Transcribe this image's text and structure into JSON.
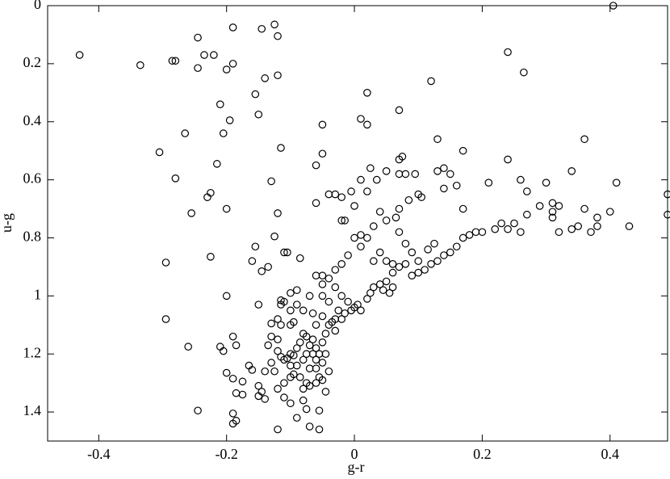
{
  "chart_data": {
    "type": "scatter",
    "xlabel": "g-r",
    "ylabel": "u-g",
    "color": "#000000",
    "xlim": [
      -0.48,
      0.49
    ],
    "ylim": [
      1.5,
      0
    ],
    "xticks": [
      -0.4,
      -0.2,
      0,
      0.2,
      0.4
    ],
    "yticks": [
      0,
      0.2,
      0.4,
      0.6,
      0.8,
      1,
      1.2,
      1.4
    ],
    "x": [
      -0.43,
      -0.335,
      -0.285,
      -0.28,
      -0.245,
      -0.235,
      -0.245,
      -0.22,
      -0.19,
      -0.19,
      -0.2,
      -0.145,
      -0.125,
      -0.12,
      -0.12,
      -0.14,
      -0.155,
      -0.21,
      -0.15,
      -0.195,
      -0.205,
      -0.265,
      -0.305,
      -0.215,
      -0.115,
      -0.28,
      -0.225,
      -0.23,
      -0.13,
      -0.255,
      -0.2,
      -0.12,
      -0.125,
      -0.155,
      -0.16,
      -0.225,
      -0.295,
      -0.145,
      -0.135,
      -0.11,
      -0.105,
      -0.085,
      -0.2,
      -0.15,
      -0.295,
      -0.26,
      -0.21,
      -0.205,
      -0.19,
      -0.185,
      -0.2,
      -0.19,
      -0.175,
      -0.165,
      -0.16,
      -0.15,
      -0.145,
      -0.15,
      -0.14,
      -0.185,
      -0.175,
      -0.245,
      -0.19,
      -0.185,
      -0.19,
      -0.12,
      -0.09,
      -0.07,
      -0.055,
      -0.055,
      -0.075,
      -0.115,
      -0.11,
      -0.115,
      -0.1,
      -0.12,
      -0.115,
      -0.13,
      -0.095,
      -0.1,
      -0.13,
      -0.12,
      -0.135,
      -0.12,
      -0.115,
      -0.13,
      -0.11,
      -0.1,
      -0.09,
      -0.085,
      -0.08,
      -0.075,
      -0.07,
      -0.06,
      -0.055,
      -0.05,
      -0.045,
      -0.04,
      -0.035,
      -0.065,
      -0.075,
      -0.08,
      -0.09,
      -0.095,
      -0.085,
      -0.075,
      -0.08,
      -0.07,
      -0.06,
      -0.055,
      -0.05,
      -0.045,
      -0.1,
      -0.11,
      -0.12,
      -0.11,
      -0.14,
      -0.125,
      -0.1,
      -0.105,
      -0.095,
      -0.065,
      -0.06,
      -0.07,
      -0.06,
      -0.05,
      -0.065,
      -0.08,
      -0.09,
      -0.1,
      -0.09,
      -0.07,
      -0.05,
      -0.06,
      -0.04,
      -0.03,
      -0.02,
      -0.01,
      0,
      -0.005,
      0.01,
      0.005,
      0.02,
      0.025,
      0.03,
      0.04,
      0.05,
      0.06,
      0.055,
      0.045,
      -0.03,
      -0.025,
      -0.04,
      -0.05,
      -0.03,
      -0.02,
      -0.015,
      -0.045,
      -0.05,
      -0.04,
      -0.06,
      -0.08,
      -0.1,
      -0.05,
      -0.03,
      -0.02,
      -0.01,
      0,
      0.01,
      -0.02,
      0,
      -0.005,
      0.02,
      0.01,
      0.025,
      0.035,
      0.05,
      0.07,
      0.075,
      0.07,
      0.08,
      0.095,
      0.1,
      0.105,
      0.085,
      0.07,
      0.065,
      0.05,
      0.04,
      0.03,
      0.02,
      0.01,
      0.04,
      0.03,
      0.05,
      0.06,
      0.07,
      0.08,
      0.09,
      0.1,
      0.11,
      0.12,
      0.13,
      0.14,
      0.15,
      0.16,
      0.17,
      0.18,
      0.19,
      0.2,
      0.22,
      0.23,
      0.24,
      0.25,
      0.26,
      0.27,
      0.29,
      0.31,
      0.31,
      0.32,
      0.34,
      0.35,
      0.36,
      0.37,
      0.38,
      0.38,
      0.4,
      0.41,
      0.43,
      0.49,
      0.49,
      0.36,
      0.34,
      0.3,
      0.31,
      0.32,
      0.26,
      0.27,
      0.24,
      0.21,
      0.17,
      0.16,
      0.17,
      0.14,
      0.15,
      0.13,
      0.13,
      0.14,
      0.12,
      0.07,
      0.02,
      0.01,
      0.02,
      -0.05,
      -0.05,
      -0.06,
      -0.04,
      -0.03,
      -0.06,
      -0.02,
      -0.015,
      0.24,
      0.265,
      0.405,
      0.07,
      0.08,
      0.09,
      0.1,
      0.06,
      0.115,
      0.125
    ],
    "values": [
      0.17,
      0.205,
      0.19,
      0.19,
      0.11,
      0.17,
      0.215,
      0.17,
      0.075,
      0.2,
      0.22,
      0.08,
      0.065,
      0.105,
      0.24,
      0.25,
      0.305,
      0.34,
      0.375,
      0.395,
      0.44,
      0.44,
      0.505,
      0.545,
      0.49,
      0.595,
      0.645,
      0.66,
      0.605,
      0.715,
      0.7,
      0.715,
      0.795,
      0.83,
      0.88,
      0.865,
      0.885,
      0.915,
      0.9,
      0.85,
      0.85,
      0.87,
      1.0,
      1.03,
      1.08,
      1.175,
      1.175,
      1.19,
      1.14,
      1.17,
      1.265,
      1.285,
      1.295,
      1.24,
      1.255,
      1.31,
      1.33,
      1.345,
      1.355,
      1.335,
      1.34,
      1.395,
      1.405,
      1.43,
      1.44,
      1.46,
      1.42,
      1.45,
      1.46,
      1.395,
      1.39,
      1.015,
      1.02,
      1.03,
      1.05,
      1.08,
      1.1,
      1.095,
      1.09,
      1.1,
      1.14,
      1.15,
      1.17,
      1.19,
      1.21,
      1.23,
      1.22,
      1.2,
      1.18,
      1.16,
      1.13,
      1.14,
      1.17,
      1.18,
      1.2,
      1.16,
      1.13,
      1.1,
      1.09,
      1.15,
      1.2,
      1.22,
      1.24,
      1.27,
      1.28,
      1.3,
      1.32,
      1.31,
      1.25,
      1.28,
      1.29,
      1.33,
      1.28,
      1.3,
      1.32,
      1.35,
      1.26,
      1.26,
      1.24,
      1.215,
      1.205,
      1.2,
      1.22,
      1.25,
      1.1,
      1.07,
      1.06,
      1.05,
      1.03,
      0.99,
      0.98,
      1.0,
      0.96,
      0.93,
      0.94,
      0.97,
      1.0,
      1.02,
      1.04,
      1.05,
      1.05,
      1.03,
      1.01,
      0.99,
      0.97,
      0.96,
      0.95,
      0.97,
      0.99,
      0.98,
      1.08,
      1.05,
      1.02,
      1.0,
      1.12,
      1.08,
      1.06,
      1.2,
      1.23,
      1.26,
      1.3,
      1.36,
      1.37,
      0.93,
      0.91,
      0.89,
      0.86,
      0.8,
      0.83,
      0.74,
      0.69,
      0.64,
      0.64,
      0.6,
      0.56,
      0.6,
      0.57,
      0.53,
      0.52,
      0.58,
      0.58,
      0.58,
      0.65,
      0.66,
      0.67,
      0.7,
      0.73,
      0.74,
      0.71,
      0.76,
      0.8,
      0.79,
      0.85,
      0.88,
      0.88,
      0.89,
      0.9,
      0.89,
      0.93,
      0.92,
      0.91,
      0.89,
      0.88,
      0.86,
      0.85,
      0.83,
      0.8,
      0.79,
      0.78,
      0.78,
      0.77,
      0.75,
      0.77,
      0.75,
      0.78,
      0.72,
      0.69,
      0.71,
      0.73,
      0.78,
      0.77,
      0.76,
      0.7,
      0.78,
      0.73,
      0.76,
      0.71,
      0.61,
      0.76,
      0.65,
      0.72,
      0.46,
      0.57,
      0.61,
      0.68,
      0.69,
      0.6,
      0.64,
      0.53,
      0.61,
      0.5,
      0.62,
      0.7,
      0.56,
      0.58,
      0.57,
      0.46,
      0.63,
      0.26,
      0.36,
      0.3,
      0.39,
      0.41,
      0.41,
      0.51,
      0.55,
      0.65,
      0.65,
      0.68,
      0.66,
      0.74,
      0.16,
      0.23,
      0,
      0.78,
      0.82,
      0.85,
      0.88,
      0.92,
      0.84,
      0.82
    ]
  }
}
